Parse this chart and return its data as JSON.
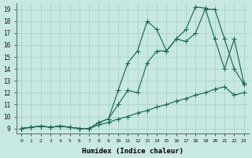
{
  "xlabel": "Humidex (Indice chaleur)",
  "bg_color": "#c8e8e2",
  "grid_color": "#a8cfc8",
  "line_color": "#1a6b58",
  "xlim": [
    -0.5,
    23.5
  ],
  "ylim": [
    8.6,
    19.5
  ],
  "xticks": [
    0,
    1,
    2,
    3,
    4,
    5,
    6,
    7,
    8,
    9,
    10,
    11,
    12,
    13,
    14,
    15,
    16,
    17,
    18,
    19,
    20,
    21,
    22,
    23
  ],
  "yticks": [
    9,
    10,
    11,
    12,
    13,
    14,
    15,
    16,
    17,
    18,
    19
  ],
  "line1_x": [
    0,
    1,
    2,
    3,
    4,
    5,
    6,
    7,
    8,
    9,
    10,
    11,
    12,
    13,
    14,
    15,
    16,
    17,
    18,
    19,
    20,
    21,
    22,
    23
  ],
  "line1_y": [
    9.0,
    9.1,
    9.2,
    9.1,
    9.2,
    9.1,
    9.0,
    9.0,
    9.3,
    9.5,
    9.8,
    10.0,
    10.3,
    10.5,
    10.8,
    11.0,
    11.3,
    11.5,
    11.8,
    12.0,
    12.3,
    12.5,
    11.8,
    12.0
  ],
  "line2_x": [
    0,
    1,
    2,
    3,
    4,
    5,
    6,
    7,
    8,
    9,
    10,
    11,
    12,
    13,
    14,
    15,
    16,
    17,
    18,
    19,
    20,
    21,
    22,
    23
  ],
  "line2_y": [
    9.0,
    9.1,
    9.2,
    9.1,
    9.2,
    9.1,
    9.0,
    9.0,
    9.5,
    9.8,
    11.0,
    12.2,
    12.0,
    14.5,
    15.5,
    15.5,
    16.5,
    16.3,
    17.0,
    19.0,
    19.0,
    16.5,
    14.0,
    12.7
  ],
  "line3_x": [
    0,
    1,
    2,
    3,
    4,
    5,
    6,
    7,
    8,
    9,
    10,
    11,
    12,
    13,
    14,
    15,
    16,
    17,
    18,
    19,
    20,
    21,
    22,
    23
  ],
  "line3_y": [
    9.0,
    9.1,
    9.2,
    9.1,
    9.2,
    9.1,
    9.0,
    9.0,
    9.5,
    9.8,
    12.2,
    14.5,
    15.5,
    18.0,
    17.3,
    15.5,
    16.5,
    17.3,
    19.2,
    19.1,
    16.5,
    14.0,
    16.5,
    12.8
  ]
}
